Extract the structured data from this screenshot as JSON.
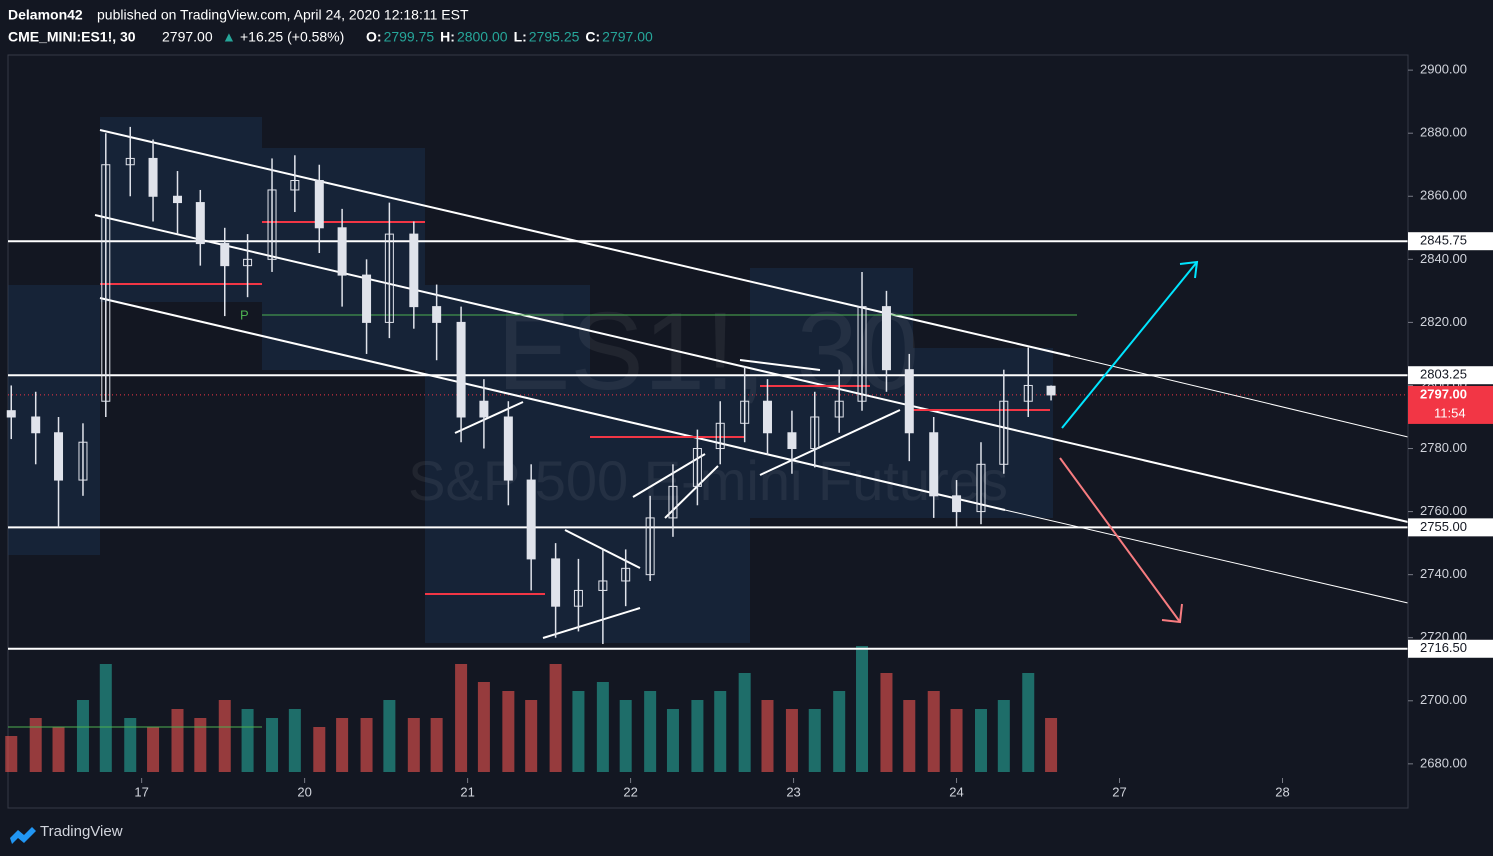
{
  "header": {
    "author": "Delamon42",
    "published": "published on TradingView.com, April 24, 2020 12:18:11 EST",
    "symbol": "CME_MINI:ES1!, 30",
    "last": "2797.00",
    "arrow": "▲",
    "change": "+16.25 (+0.58%)",
    "ohlc": [
      {
        "label": "O:",
        "value": "2799.75"
      },
      {
        "label": "H:",
        "value": "2800.00"
      },
      {
        "label": "L:",
        "value": "2795.25"
      },
      {
        "label": "C:",
        "value": "2797.00"
      }
    ]
  },
  "chart_data": {
    "type": "candlestick",
    "watermark": [
      "ES1!, 30",
      "S&P 500 E-mini Futures"
    ],
    "x": [
      -0.8,
      -0.65,
      -0.51,
      -0.36,
      -0.22,
      -0.07,
      0.07,
      0.22,
      0.36,
      0.51,
      0.65,
      0.8,
      0.94,
      1.09,
      1.23,
      1.38,
      1.52,
      1.67,
      1.81,
      1.96,
      2.1,
      2.25,
      2.39,
      2.54,
      2.68,
      2.83,
      2.97,
      3.12,
      3.26,
      3.41,
      3.55,
      3.7,
      3.84,
      3.99,
      4.13,
      4.28,
      4.42,
      4.57,
      4.71,
      4.86,
      5.0,
      5.15,
      5.29,
      5.44,
      5.58
    ],
    "open": [
      2792,
      2790,
      2785,
      2770,
      2795,
      2870,
      2872,
      2860,
      2858,
      2845,
      2838,
      2840,
      2862,
      2865,
      2850,
      2835,
      2820,
      2848,
      2825,
      2820,
      2795,
      2790,
      2770,
      2745,
      2730,
      2735,
      2738,
      2740,
      2758,
      2768,
      2780,
      2788,
      2795,
      2785,
      2780,
      2790,
      2795,
      2825,
      2805,
      2785,
      2765,
      2760,
      2775,
      2795,
      2799.75
    ],
    "high": [
      2800,
      2798,
      2790,
      2788,
      2880,
      2882,
      2878,
      2868,
      2862,
      2850,
      2848,
      2872,
      2873,
      2870,
      2856,
      2840,
      2858,
      2852,
      2832,
      2825,
      2802,
      2795,
      2775,
      2750,
      2745,
      2748,
      2748,
      2765,
      2775,
      2786,
      2795,
      2806,
      2802,
      2792,
      2798,
      2805,
      2836,
      2830,
      2810,
      2790,
      2770,
      2782,
      2805,
      2812,
      2800
    ],
    "low": [
      2783,
      2775,
      2755,
      2765,
      2790,
      2860,
      2852,
      2848,
      2838,
      2822,
      2828,
      2836,
      2855,
      2842,
      2825,
      2810,
      2815,
      2818,
      2808,
      2782,
      2780,
      2762,
      2735,
      2720,
      2722,
      2718,
      2730,
      2738,
      2752,
      2762,
      2775,
      2782,
      2778,
      2772,
      2774,
      2785,
      2792,
      2798,
      2776,
      2758,
      2755,
      2756,
      2772,
      2790,
      2795.25
    ],
    "close": [
      2790,
      2785,
      2770,
      2782,
      2870,
      2872,
      2860,
      2858,
      2845,
      2838,
      2840,
      2862,
      2865,
      2850,
      2835,
      2820,
      2848,
      2825,
      2820,
      2790,
      2790,
      2770,
      2745,
      2730,
      2735,
      2738,
      2742,
      2758,
      2768,
      2780,
      2788,
      2795,
      2785,
      2780,
      2790,
      2795,
      2825,
      2805,
      2785,
      2765,
      2760,
      2775,
      2795,
      2800,
      2797
    ],
    "volume": [
      20,
      30,
      25,
      40,
      60,
      30,
      25,
      35,
      30,
      40,
      35,
      30,
      35,
      25,
      30,
      30,
      40,
      30,
      30,
      60,
      50,
      45,
      40,
      60,
      45,
      50,
      40,
      45,
      35,
      40,
      45,
      55,
      40,
      35,
      35,
      45,
      70,
      55,
      40,
      45,
      35,
      35,
      40,
      55,
      30
    ],
    "volume_lim": [
      0,
      100
    ],
    "xlim": [
      -0.82,
      7.77
    ],
    "xticks": [
      {
        "value": 0,
        "label": "17"
      },
      {
        "value": 1,
        "label": "20"
      },
      {
        "value": 2,
        "label": "21"
      },
      {
        "value": 3,
        "label": "22"
      },
      {
        "value": 4,
        "label": "23"
      },
      {
        "value": 5,
        "label": "24"
      },
      {
        "value": 6,
        "label": "27"
      },
      {
        "value": 7,
        "label": "28"
      }
    ],
    "ylim": [
      2666,
      2904.8
    ],
    "yticks": [
      {
        "value": 2680,
        "label": "2680.00"
      },
      {
        "value": 2700,
        "label": "2700.00"
      },
      {
        "value": 2720,
        "label": "2720.00"
      },
      {
        "value": 2740,
        "label": "2740.00"
      },
      {
        "value": 2760,
        "label": "2760.00"
      },
      {
        "value": 2780,
        "label": "2780.00"
      },
      {
        "value": 2800,
        "label": "2800.00"
      },
      {
        "value": 2820,
        "label": "2820.00"
      },
      {
        "value": 2840,
        "label": "2840.00"
      },
      {
        "value": 2860,
        "label": "2860.00"
      },
      {
        "value": 2880,
        "label": "2880.00"
      },
      {
        "value": 2900,
        "label": "2900.00"
      }
    ],
    "levels": [
      2845.75,
      2803.25,
      {
        "value": 2755,
        "label": "2755.00"
      },
      {
        "value": 2716.5,
        "label": "2716.50"
      }
    ],
    "last_price": {
      "value": 2797,
      "label": "2797.00"
    },
    "countdown": "11:54",
    "pivot_label": "P",
    "up_color": "#e0e3eb",
    "down_color": "#e0e3eb",
    "volume_up_color": "#26a69a",
    "volume_down_color": "#ef5350",
    "level_color": "#ffffff",
    "last_color": "#f23645"
  },
  "footer": {
    "brand": "TradingView"
  }
}
